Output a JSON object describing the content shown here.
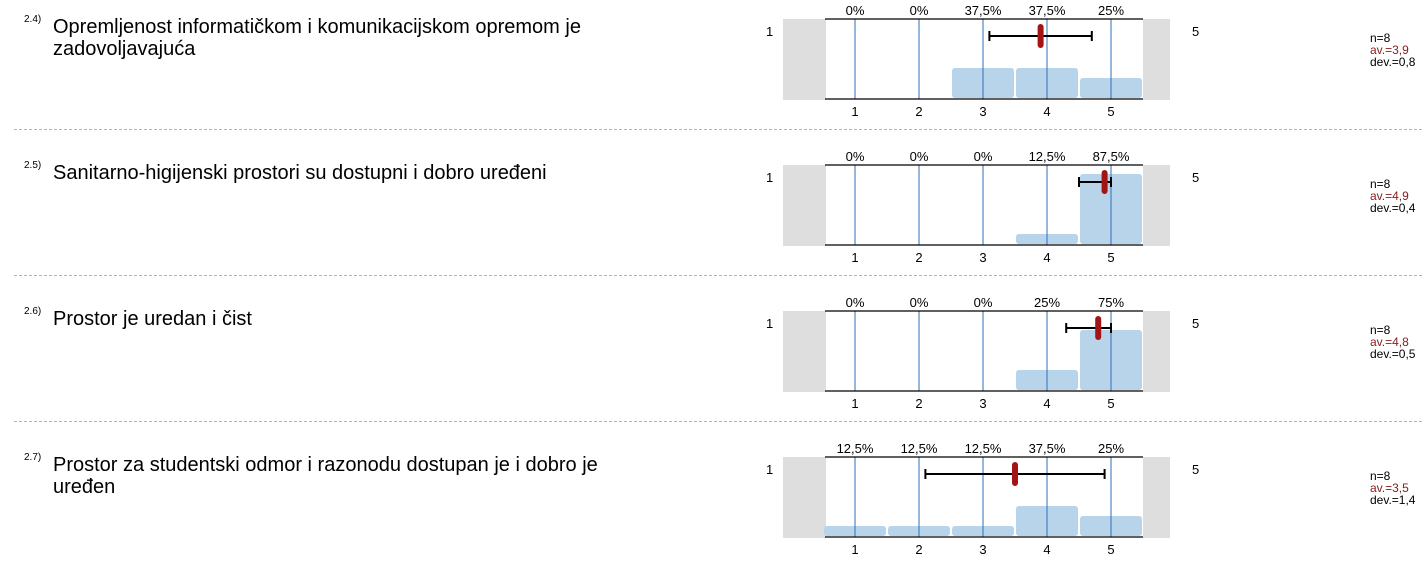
{
  "questions": [
    {
      "number": "2.4)",
      "text": "Opremljenost informatičkom i komunikacijskom opremom je zadovoljavajuća",
      "n": "n=8",
      "av": "av.=3,9",
      "dev": "dev.=0,8"
    },
    {
      "number": "2.5)",
      "text": "Sanitarno-higijenski prostori su  dostupni i dobro uređeni",
      "n": "n=8",
      "av": "av.=4,9",
      "dev": "dev.=0,4"
    },
    {
      "number": "2.6)",
      "text": "Prostor je uredan i čist",
      "n": "n=8",
      "av": "av.=4,8",
      "dev": "dev.=0,5"
    },
    {
      "number": "2.7)",
      "text": "Prostor za studentski odmor i razonodu dostupan je i dobro je uređen",
      "n": "n=8",
      "av": "av.=3,5",
      "dev": "dev.=1,4"
    }
  ],
  "scale": {
    "low": "1",
    "high": "5"
  },
  "chart_data": [
    {
      "type": "bar",
      "categories": [
        "1",
        "2",
        "3",
        "4",
        "5"
      ],
      "values": [
        0,
        0,
        37.5,
        37.5,
        25
      ],
      "labels": [
        "0%",
        "0%",
        "37,5%",
        "37,5%",
        "25%"
      ],
      "mean": 3.9,
      "sd": 0.8,
      "ylim": [
        0,
        100
      ]
    },
    {
      "type": "bar",
      "categories": [
        "1",
        "2",
        "3",
        "4",
        "5"
      ],
      "values": [
        0,
        0,
        0,
        12.5,
        87.5
      ],
      "labels": [
        "0%",
        "0%",
        "0%",
        "12,5%",
        "87,5%"
      ],
      "mean": 4.9,
      "sd": 0.4,
      "ylim": [
        0,
        100
      ]
    },
    {
      "type": "bar",
      "categories": [
        "1",
        "2",
        "3",
        "4",
        "5"
      ],
      "values": [
        0,
        0,
        0,
        25,
        75
      ],
      "labels": [
        "0%",
        "0%",
        "0%",
        "25%",
        "75%"
      ],
      "mean": 4.8,
      "sd": 0.5,
      "ylim": [
        0,
        100
      ]
    },
    {
      "type": "bar",
      "categories": [
        "1",
        "2",
        "3",
        "4",
        "5"
      ],
      "values": [
        12.5,
        12.5,
        12.5,
        37.5,
        25
      ],
      "labels": [
        "12,5%",
        "12,5%",
        "12,5%",
        "37,5%",
        "25%"
      ],
      "mean": 3.5,
      "sd": 1.4,
      "ylim": [
        0,
        100
      ]
    }
  ],
  "colors": {
    "bar": "#b8d4ea",
    "gridline": "#2f6fb5",
    "mean": "#a31515",
    "side": "#dedede",
    "stat_av": "#8b1a1a"
  }
}
